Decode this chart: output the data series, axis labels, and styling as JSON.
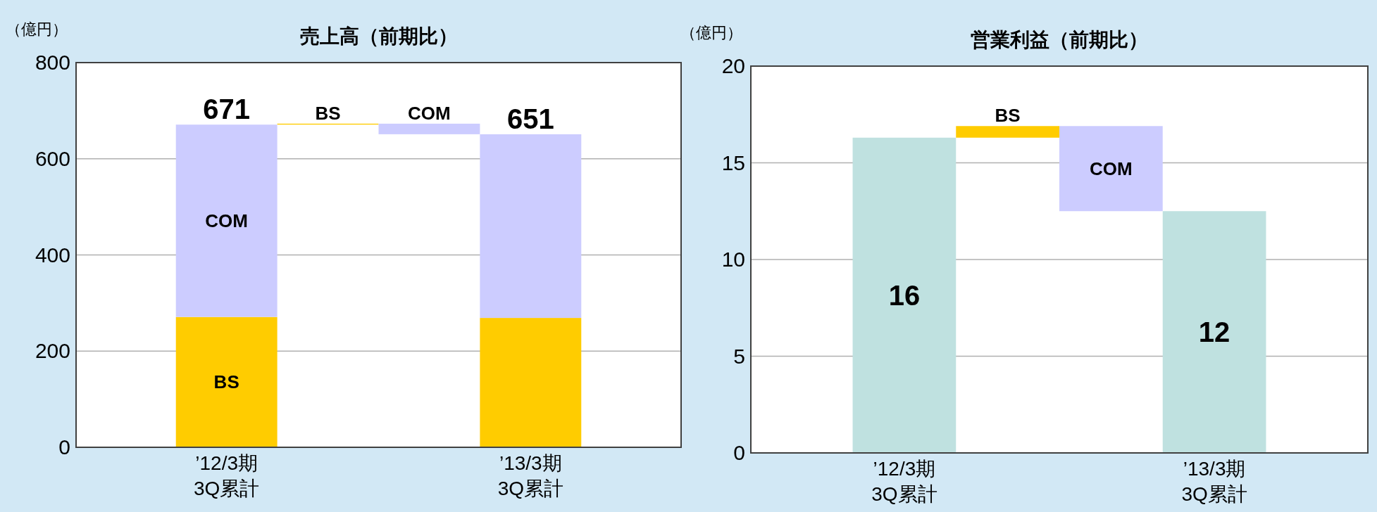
{
  "chart_data": [
    {
      "type": "bar",
      "title": "売上高（前期比）",
      "ylabel": "（億円）",
      "categories": [
        "’12/3期\n3Q累計",
        null,
        null,
        "’13/3期\n3Q累計"
      ],
      "stacked": true,
      "ylim": [
        0,
        800
      ],
      "yticks": [
        0,
        200,
        400,
        600,
        800
      ],
      "grid": "y",
      "totals": [
        "671",
        null,
        null,
        "651"
      ],
      "series": [
        {
          "name": "BS",
          "color": "#ffcc00",
          "values": [
            271,
            2,
            null,
            269
          ],
          "base": [
            null,
            671,
            null,
            null
          ]
        },
        {
          "name": "COM",
          "color": "#ccccff",
          "values": [
            400,
            null,
            -22,
            382
          ],
          "base": [
            null,
            null,
            673,
            null
          ]
        }
      ]
    },
    {
      "type": "bar",
      "title": "営業利益（前期比）",
      "ylabel": "（億円）",
      "categories": [
        "’12/3期\n3Q累計",
        null,
        null,
        "’13/3期\n3Q累計"
      ],
      "ylim": [
        0,
        20
      ],
      "yticks": [
        0,
        5,
        10,
        15,
        20
      ],
      "grid": "y",
      "series": [
        {
          "color": "#bfe1e0",
          "values": [
            16.3,
            null,
            null,
            12.5
          ],
          "value_labels": [
            "16",
            null,
            null,
            "12"
          ]
        },
        {
          "name": "BS",
          "color": "#ffcc00",
          "values": [
            null,
            0.6,
            null,
            null
          ],
          "base": [
            null,
            16.3,
            null,
            null
          ]
        },
        {
          "name": "COM",
          "color": "#ccccff",
          "values": [
            null,
            null,
            -4.4,
            null
          ],
          "base": [
            null,
            null,
            16.9,
            null
          ]
        }
      ]
    }
  ]
}
